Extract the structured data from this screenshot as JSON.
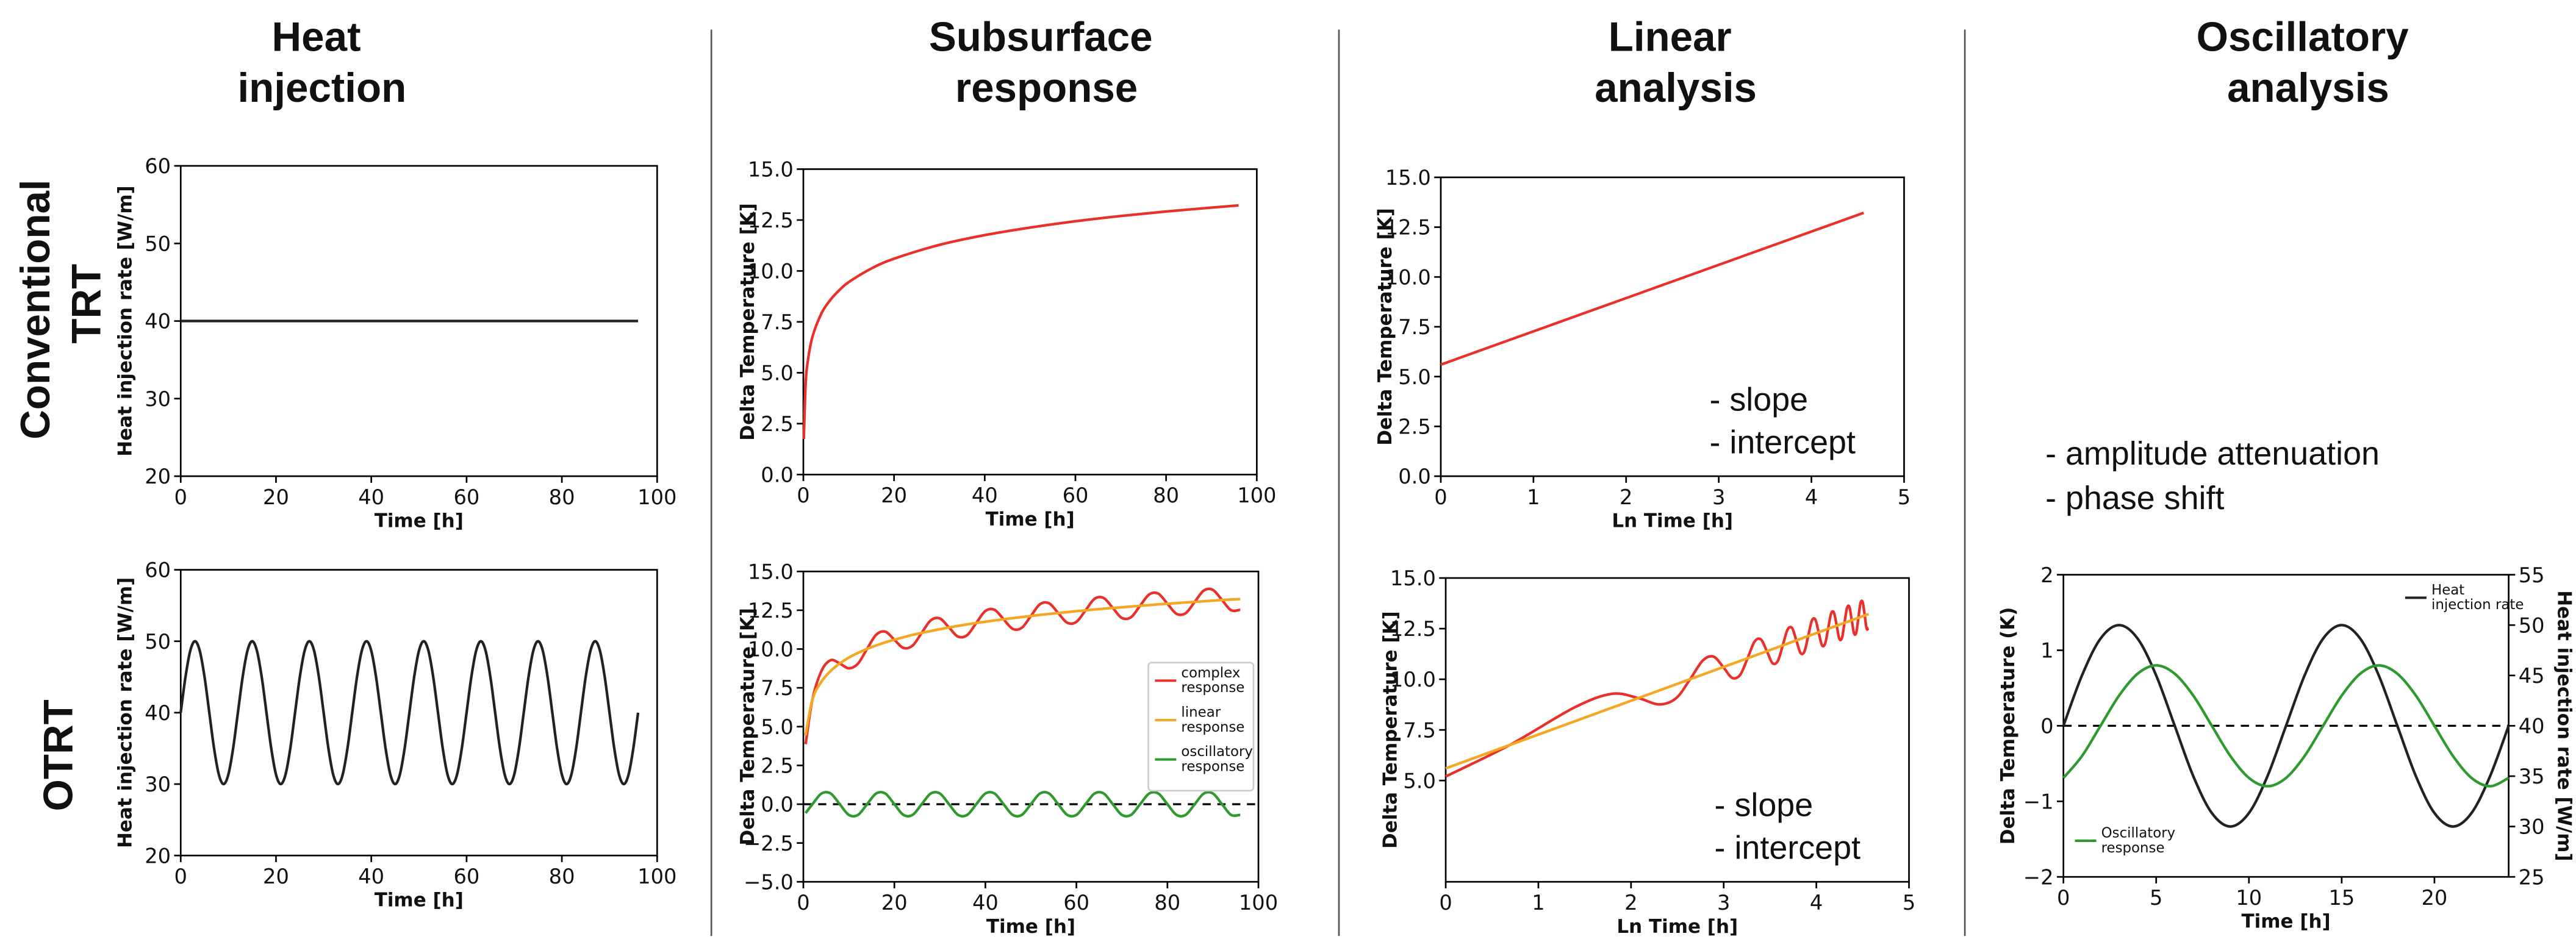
{
  "headers": {
    "columns": [
      "Heat injection",
      "Subsurface response",
      "Linear analysis",
      "Oscillatory analysis"
    ],
    "rows": [
      "Conventional TRT",
      "OTRT"
    ]
  },
  "oscillatory_notes": [
    "- amplitude attenuation",
    "- phase shift"
  ],
  "chart_data": [
    {
      "type": "line",
      "xlabel": "Time [h]",
      "ylabel": "Heat injection rate [W/m]",
      "x": [
        0,
        96
      ],
      "xlim": [
        0,
        100
      ],
      "ylim": [
        20,
        60
      ],
      "xticks": [
        0,
        20,
        40,
        60,
        80,
        100
      ],
      "yticks": [
        20,
        30,
        40,
        50,
        60
      ],
      "series": [
        {
          "color": "#222222",
          "values": [
            40,
            40
          ]
        }
      ]
    },
    {
      "type": "line",
      "xlabel": "Time [h]",
      "ylabel": "Delta Temperature [K]",
      "x": [
        0.1,
        0.5,
        1,
        2,
        4,
        6,
        8,
        10,
        15,
        20,
        30,
        40,
        50,
        60,
        70,
        80,
        90,
        96
      ],
      "xlim": [
        0,
        100
      ],
      "ylim": [
        0,
        15
      ],
      "xticks": [
        0,
        20,
        40,
        60,
        80,
        100
      ],
      "yticks": [
        {
          "value": 0,
          "label": "0.0"
        },
        2.5,
        {
          "value": 5,
          "label": "5.0"
        },
        7.5,
        {
          "value": 10,
          "label": "10.0"
        },
        12.5,
        {
          "value": 15,
          "label": "15.0"
        }
      ],
      "series": [
        {
          "color": "#e8312a",
          "values": [
            1.75,
            4.44,
            5.6,
            6.76,
            7.92,
            8.59,
            9.07,
            9.45,
            10.12,
            10.6,
            11.28,
            11.76,
            12.13,
            12.44,
            12.7,
            12.92,
            13.11,
            13.22
          ]
        }
      ]
    },
    {
      "type": "line",
      "xlabel": "Ln Time [h]",
      "ylabel": "Delta Temperature [K]",
      "x": [
        0,
        4.564
      ],
      "xlim": [
        0,
        5
      ],
      "ylim": [
        0,
        15
      ],
      "xticks": [
        0,
        1,
        2,
        3,
        4,
        5
      ],
      "yticks": [
        {
          "value": 0,
          "label": "0.0"
        },
        2.5,
        {
          "value": 5,
          "label": "5.0"
        },
        7.5,
        {
          "value": 10,
          "label": "10.0"
        },
        12.5,
        {
          "value": 15,
          "label": "15.0"
        }
      ],
      "annotations": [
        "- slope",
        "- intercept"
      ],
      "series": [
        {
          "color": "#e8312a",
          "values": [
            5.6,
            13.22
          ]
        }
      ]
    },
    {
      "type": "line",
      "xlabel": "Time [h]",
      "ylabel": "Heat injection rate [W/m]",
      "x": [
        0,
        1,
        2,
        3,
        4,
        5,
        6,
        7,
        8,
        9,
        10,
        11,
        12,
        13,
        14,
        15,
        16,
        17,
        18,
        19,
        20,
        21,
        22,
        23,
        24,
        25,
        26,
        27,
        28,
        29,
        30,
        31,
        32,
        33,
        34,
        35,
        36,
        37,
        38,
        39,
        40,
        41,
        42,
        43,
        44,
        45,
        46,
        47,
        48,
        49,
        50,
        51,
        52,
        53,
        54,
        55,
        56,
        57,
        58,
        59,
        60,
        61,
        62,
        63,
        64,
        65,
        66,
        67,
        68,
        69,
        70,
        71,
        72,
        73,
        74,
        75,
        76,
        77,
        78,
        79,
        80,
        81,
        82,
        83,
        84,
        85,
        86,
        87,
        88,
        89,
        90,
        91,
        92,
        93,
        94,
        95,
        96
      ],
      "xlim": [
        0,
        100
      ],
      "ylim": [
        20,
        60
      ],
      "xticks": [
        0,
        20,
        40,
        60,
        80,
        100
      ],
      "yticks": [
        20,
        30,
        40,
        50,
        60
      ],
      "series": [
        {
          "color": "#222222",
          "values": [
            40,
            45,
            48.66,
            50,
            48.66,
            45,
            40,
            35,
            31.34,
            30,
            31.34,
            35,
            40,
            45,
            48.66,
            50,
            48.66,
            45,
            40,
            35,
            31.34,
            30,
            31.34,
            35,
            40,
            45,
            48.66,
            50,
            48.66,
            45,
            40,
            35,
            31.34,
            30,
            31.34,
            35,
            40,
            45,
            48.66,
            50,
            48.66,
            45,
            40,
            35,
            31.34,
            30,
            31.34,
            35,
            40,
            45,
            48.66,
            50,
            48.66,
            45,
            40,
            35,
            31.34,
            30,
            31.34,
            35,
            40,
            45,
            48.66,
            50,
            48.66,
            45,
            40,
            35,
            31.34,
            30,
            31.34,
            35,
            40,
            45,
            48.66,
            50,
            48.66,
            45,
            40,
            35,
            31.34,
            30,
            31.34,
            35,
            40,
            45,
            48.66,
            50,
            48.66,
            45,
            40,
            35,
            31.34,
            30,
            31.34,
            35,
            40
          ]
        }
      ]
    },
    {
      "type": "line",
      "xlabel": "Time [h]",
      "ylabel": "Delta Temperature [K]",
      "legend": "center right",
      "hline": 0,
      "x": [
        0.5,
        2,
        4,
        6,
        8,
        10,
        12,
        14,
        16,
        18,
        20,
        22,
        24,
        26,
        28,
        30,
        32,
        34,
        36,
        38,
        40,
        42,
        44,
        46,
        48,
        50,
        52,
        54,
        56,
        58,
        60,
        62,
        64,
        66,
        68,
        70,
        72,
        74,
        76,
        78,
        80,
        82,
        84,
        86,
        88,
        90,
        92,
        94,
        96
      ],
      "xlim": [
        0,
        100
      ],
      "ylim": [
        -5,
        15
      ],
      "xticks": [
        0,
        20,
        40,
        60,
        80,
        100
      ],
      "yticks": [
        {
          "value": -5,
          "label": "−5.0"
        },
        {
          "value": -2.5,
          "label": "−2.5"
        },
        {
          "value": 0,
          "label": "0.0"
        },
        2.5,
        {
          "value": 5,
          "label": "5.0"
        },
        7.5,
        {
          "value": 10,
          "label": "10.0"
        },
        12.5,
        {
          "value": 15,
          "label": "15.0"
        }
      ],
      "series": [
        {
          "name": "complex response",
          "color": "#e8312a",
          "values": [
            3.87,
            6.76,
            8.6,
            9.28,
            9.07,
            8.76,
            9.06,
            10.01,
            10.92,
            11.12,
            10.6,
            10.07,
            10.22,
            11.04,
            11.85,
            11.97,
            11.39,
            10.8,
            10.9,
            11.68,
            12.45,
            12.53,
            11.92,
            11.3,
            11.37,
            12.13,
            12.89,
            12.95,
            12.32,
            11.69,
            11.75,
            12.49,
            13.24,
            13.29,
            12.65,
            12.0,
            12.05,
            12.79,
            13.52,
            13.57,
            12.92,
            12.27,
            12.31,
            13.04,
            13.77,
            13.81,
            13.16,
            12.5,
            12.53
          ]
        },
        {
          "name": "linear response",
          "color": "#f5a623",
          "values": [
            4.44,
            6.76,
            7.91,
            8.59,
            9.07,
            9.45,
            9.75,
            10.01,
            10.23,
            10.43,
            10.6,
            10.76,
            10.91,
            11.04,
            11.16,
            11.28,
            11.39,
            11.49,
            11.59,
            11.68,
            11.76,
            11.84,
            11.92,
            11.99,
            12.06,
            12.13,
            12.2,
            12.26,
            12.32,
            12.38,
            12.44,
            12.49,
            12.55,
            12.6,
            12.65,
            12.69,
            12.74,
            12.79,
            12.83,
            12.88,
            12.92,
            12.96,
            13.0,
            13.04,
            13.08,
            13.12,
            13.16,
            13.19,
            13.22
          ]
        },
        {
          "name": "oscillatory response",
          "color": "#2e9a2e",
          "values": [
            -0.57,
            0,
            0.69,
            0.69,
            0,
            -0.69,
            -0.69,
            0,
            0.69,
            0.69,
            0,
            -0.69,
            -0.69,
            0,
            0.69,
            0.69,
            0,
            -0.69,
            -0.69,
            0,
            0.69,
            0.69,
            0,
            -0.69,
            -0.69,
            0,
            0.69,
            0.69,
            0,
            -0.69,
            -0.69,
            0,
            0.69,
            0.69,
            0,
            -0.69,
            -0.69,
            0,
            0.69,
            0.69,
            0,
            -0.69,
            -0.69,
            0,
            0.69,
            0.69,
            0,
            -0.69,
            -0.69
          ]
        }
      ]
    },
    {
      "type": "line",
      "xlabel": "Ln Time [h]",
      "ylabel": "Delta Temperature [K]",
      "xlim": [
        0,
        5
      ],
      "ylim": [
        0,
        15
      ],
      "xticks": [
        0,
        1,
        2,
        3,
        4,
        5
      ],
      "yticks": [
        {
          "value": 5,
          "label": "5.0"
        },
        7.5,
        {
          "value": 10,
          "label": "10.0"
        },
        12.5,
        {
          "value": 15,
          "label": "15.0"
        }
      ],
      "annotations": [
        "- slope",
        "- intercept"
      ],
      "series": [
        {
          "color": "#e8312a",
          "x": [
            0,
            0.693,
            1.386,
            1.792,
            2.079,
            2.303,
            2.485,
            2.639,
            2.773,
            2.89,
            2.996,
            3.091,
            3.178,
            3.258,
            3.332,
            3.401,
            3.466,
            3.526,
            3.584,
            3.638,
            3.689,
            3.738,
            3.784,
            3.829,
            3.871,
            3.912,
            3.951,
            3.989,
            4.025,
            4.06,
            4.094,
            4.127,
            4.159,
            4.19,
            4.22,
            4.248,
            4.277,
            4.304,
            4.331,
            4.357,
            4.382,
            4.407,
            4.431,
            4.454,
            4.477,
            4.5,
            4.522,
            4.543,
            4.564
          ],
          "values": [
            5.2,
            6.76,
            8.6,
            9.28,
            9.07,
            8.76,
            9.06,
            10.01,
            10.92,
            11.12,
            10.6,
            10.07,
            10.22,
            11.04,
            11.85,
            11.97,
            11.39,
            10.8,
            10.9,
            11.68,
            12.45,
            12.53,
            11.92,
            11.3,
            11.37,
            12.13,
            12.89,
            12.95,
            12.32,
            11.69,
            11.75,
            12.49,
            13.24,
            13.29,
            12.65,
            12.0,
            12.05,
            12.79,
            13.52,
            13.57,
            12.92,
            12.27,
            12.31,
            13.04,
            13.77,
            13.81,
            13.16,
            12.5,
            12.53
          ]
        },
        {
          "color": "#f5a623",
          "x": [
            0,
            4.564
          ],
          "values": [
            5.6,
            13.22
          ]
        }
      ]
    },
    {
      "type": "line",
      "xlabel": "Time [h]",
      "ylabel": "Delta Temperature (K)",
      "y2label": "Heat injection rate [W/m]",
      "hline": 0,
      "x": [
        0,
        1,
        2,
        3,
        4,
        5,
        6,
        7,
        8,
        9,
        10,
        11,
        12,
        13,
        14,
        15,
        16,
        17,
        18,
        19,
        20,
        21,
        22,
        23,
        24
      ],
      "xlim": [
        0,
        24
      ],
      "ylim": [
        -2,
        2
      ],
      "y2lim": [
        25,
        55
      ],
      "xticks": [
        0,
        5,
        10,
        15,
        20
      ],
      "yticks": [
        {
          "value": -2,
          "label": "−2"
        },
        {
          "value": -1,
          "label": "−1"
        },
        0,
        1,
        2
      ],
      "y2ticks": [
        25,
        30,
        35,
        40,
        45,
        50,
        55
      ],
      "series": [
        {
          "name": "Heat injection rate",
          "color": "#222222",
          "axis": "y2",
          "legend": "upper right",
          "values": [
            40,
            45,
            48.66,
            50,
            48.66,
            45,
            40,
            35,
            31.34,
            30,
            31.34,
            35,
            40,
            45,
            48.66,
            50,
            48.66,
            45,
            40,
            35,
            31.34,
            30,
            31.34,
            35,
            40
          ]
        },
        {
          "name": "Oscillatory response",
          "color": "#2e9a2e",
          "legend": "lower left",
          "values": [
            -0.69,
            -0.4,
            0,
            0.4,
            0.69,
            0.8,
            0.69,
            0.4,
            0,
            -0.4,
            -0.69,
            -0.8,
            -0.69,
            -0.4,
            0,
            0.4,
            0.69,
            0.8,
            0.69,
            0.4,
            0,
            -0.4,
            -0.69,
            -0.8,
            -0.69
          ]
        }
      ]
    }
  ]
}
